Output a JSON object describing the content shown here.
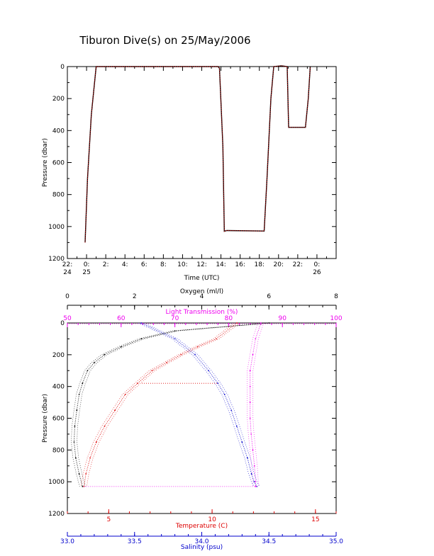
{
  "title": "Tiburon Dive(s) on 25/May/2006",
  "colors": {
    "black": "#000000",
    "red": "#dd0000",
    "magenta": "#ee00ee",
    "blue": "#0000cc",
    "trace": "#cc0000"
  },
  "chart_data": [
    {
      "type": "line",
      "title": "Tiburon Dive(s) on 25/May/2006",
      "xlabel": "Time (UTC)",
      "ylabel": "Pressure (dbar)",
      "x_ticks": [
        "22:\n24",
        "0:\n25",
        "2:",
        "4:",
        "6:",
        "8:",
        "10:",
        "12:",
        "14:",
        "16:",
        "18:",
        "20:",
        "22:",
        "0:\n26"
      ],
      "y_ticks": [
        "0",
        "200",
        "400",
        "600",
        "800",
        "1000",
        "1200"
      ],
      "ylim": [
        1200,
        0
      ],
      "xlim_hours": [
        -2,
        26
      ],
      "series": [
        {
          "x": [
            -0.15,
            0.1,
            0.5,
            1.0,
            13.7,
            13.85,
            14.2,
            14.35,
            14.6,
            18.5,
            18.8,
            19.2,
            19.5,
            20.3,
            20.9,
            21.05,
            22.8,
            23.1,
            23.3
          ],
          "y": [
            1100,
            700,
            300,
            0,
            0,
            10,
            500,
            1030,
            1025,
            1028,
            700,
            200,
            0,
            -5,
            0,
            380,
            380,
            200,
            0
          ]
        }
      ]
    },
    {
      "type": "scatter",
      "ylabel": "Pressure (dbar)",
      "y_ticks": [
        "0",
        "200",
        "400",
        "600",
        "800",
        "1000",
        "1200"
      ],
      "ylim": [
        1200,
        0
      ],
      "axes": [
        {
          "label": "Oxygen (ml/l)",
          "position": "top",
          "ticks": [
            "0",
            "2",
            "4",
            "6",
            "8"
          ],
          "range": [
            0,
            8
          ],
          "color": "black"
        },
        {
          "label": "Light Transmission (%)",
          "position": "top",
          "ticks": [
            "50",
            "60",
            "70",
            "80",
            "90",
            "100"
          ],
          "range": [
            50,
            100
          ],
          "color": "magenta"
        },
        {
          "label": "Temperature (C)",
          "position": "bottom",
          "ticks": [
            "5",
            "10",
            "15"
          ],
          "range": [
            3,
            16
          ],
          "color": "red"
        },
        {
          "label": "Salinity (psu)",
          "position": "bottom",
          "ticks": [
            "33.0",
            "33.5",
            "34.0",
            "34.5",
            "35.0"
          ],
          "range": [
            33,
            35
          ],
          "color": "blue"
        }
      ],
      "series": [
        {
          "name": "Oxygen (ml/l)",
          "axis": "Oxygen (ml/l)",
          "x": [
            6.0,
            3.2,
            2.2,
            1.6,
            1.1,
            0.8,
            0.6,
            0.45,
            0.35,
            0.28,
            0.22,
            0.2,
            0.25,
            0.35,
            0.45
          ],
          "y": [
            0,
            50,
            100,
            150,
            200,
            250,
            300,
            380,
            450,
            550,
            650,
            750,
            850,
            950,
            1030
          ]
        },
        {
          "name": "Light Transmission (%)",
          "axis": "Light Transmission (%)",
          "x": [
            86,
            85,
            84.5,
            84,
            84,
            84,
            84,
            84.2,
            84.5,
            84.8,
            85,
            85
          ],
          "y": [
            0,
            100,
            200,
            300,
            400,
            500,
            600,
            700,
            800,
            900,
            1000,
            1030
          ]
        },
        {
          "name": "Temperature (C)",
          "axis": "Temperature (C)",
          "x": [
            11.2,
            10.2,
            9.3,
            8.5,
            7.8,
            7.1,
            6.4,
            5.8,
            5.3,
            4.8,
            4.4,
            4.1,
            3.9,
            3.8
          ],
          "y": [
            0,
            100,
            150,
            200,
            250,
            300,
            380,
            450,
            550,
            650,
            750,
            850,
            950,
            1030
          ]
        },
        {
          "name": "Salinity (psu)",
          "axis": "Salinity (psu)",
          "x": [
            33.55,
            33.8,
            33.95,
            34.05,
            34.12,
            34.17,
            34.22,
            34.26,
            34.3,
            34.34,
            34.37,
            34.39,
            34.41
          ],
          "y": [
            0,
            100,
            200,
            300,
            380,
            450,
            550,
            650,
            750,
            850,
            950,
            1000,
            1030
          ]
        }
      ]
    }
  ]
}
